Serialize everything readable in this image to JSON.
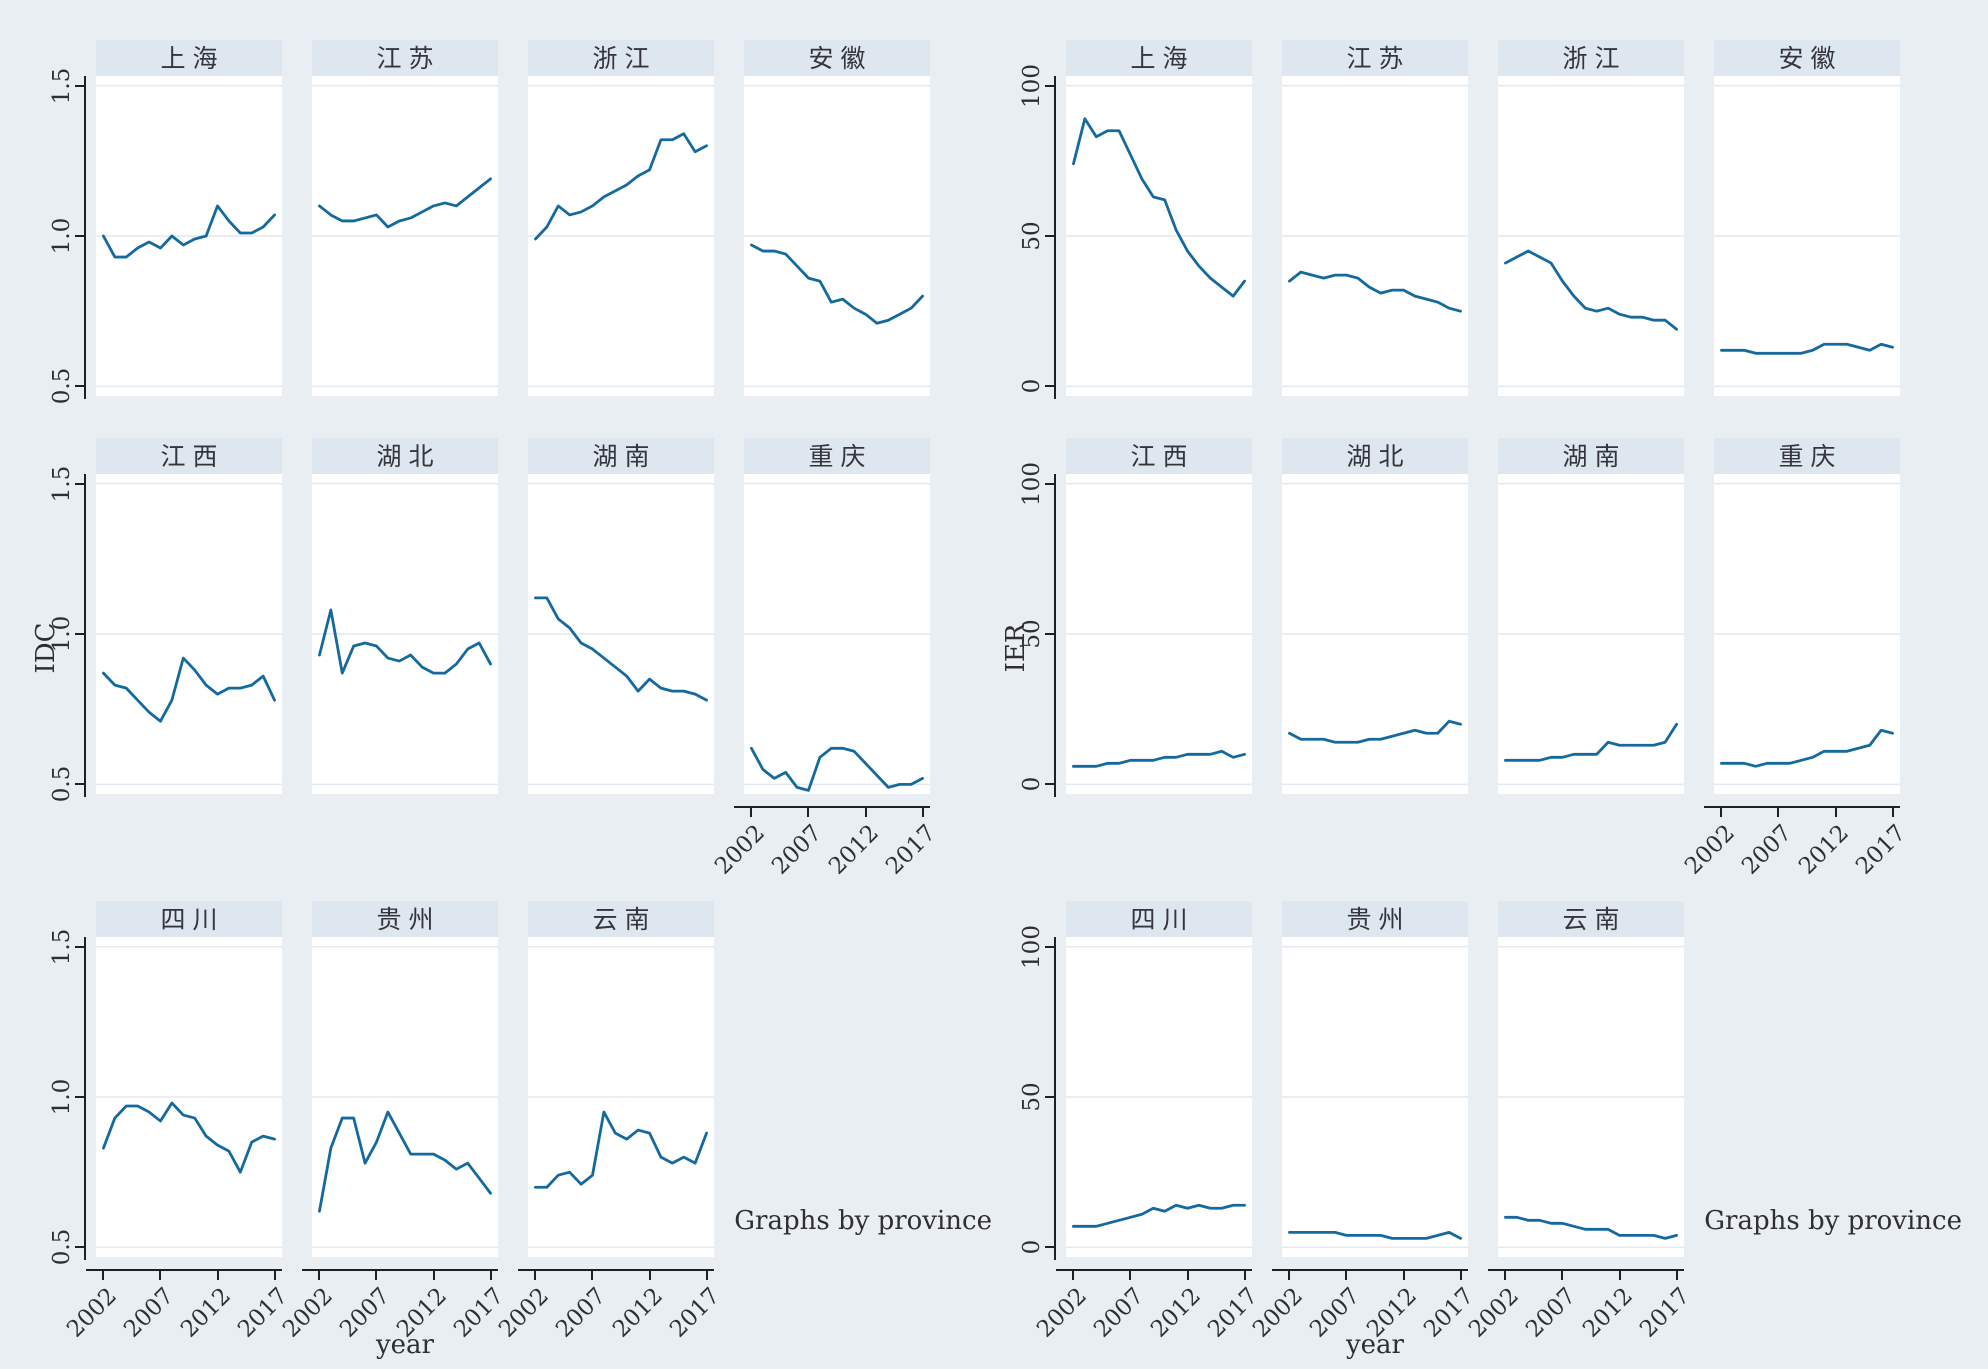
{
  "colors": {
    "background": "#e9eef3",
    "panel_background": "#ffffff",
    "title_band": "#dee7f0",
    "gridline": "#e3e9ee",
    "axis": "#1f1f24",
    "line": "#14699e"
  },
  "chart_data": [
    {
      "type": "line",
      "ylabel": "IDC",
      "xlabel": "year",
      "caption": "Graphs by province",
      "x": [
        2002,
        2003,
        2004,
        2005,
        2006,
        2007,
        2008,
        2009,
        2010,
        2011,
        2012,
        2013,
        2014,
        2015,
        2016,
        2017
      ],
      "xticks": [
        "2002",
        "2007",
        "2012",
        "2017"
      ],
      "yticks": [
        {
          "label": "1.5",
          "value": 1.5
        },
        {
          "label": "1.0",
          "value": 1.0
        },
        {
          "label": "0.5",
          "value": 0.5
        }
      ],
      "ylim": [
        0.468,
        1.532
      ],
      "grid": true,
      "legend": "none",
      "series": [
        {
          "name": "上海",
          "values": [
            1.0,
            0.93,
            0.93,
            0.96,
            0.98,
            0.96,
            1.0,
            0.97,
            0.99,
            1.0,
            1.1,
            1.05,
            1.01,
            1.01,
            1.03,
            1.07
          ]
        },
        {
          "name": "江苏",
          "values": [
            1.1,
            1.07,
            1.05,
            1.05,
            1.06,
            1.07,
            1.03,
            1.05,
            1.06,
            1.08,
            1.1,
            1.11,
            1.1,
            1.13,
            1.16,
            1.19
          ]
        },
        {
          "name": "浙江",
          "values": [
            0.99,
            1.03,
            1.1,
            1.07,
            1.08,
            1.1,
            1.13,
            1.15,
            1.17,
            1.2,
            1.22,
            1.32,
            1.32,
            1.34,
            1.28,
            1.3
          ]
        },
        {
          "name": "安徽",
          "values": [
            0.97,
            0.95,
            0.95,
            0.94,
            0.9,
            0.86,
            0.85,
            0.78,
            0.79,
            0.76,
            0.74,
            0.71,
            0.72,
            0.74,
            0.76,
            0.8
          ]
        },
        {
          "name": "江西",
          "values": [
            0.87,
            0.83,
            0.82,
            0.78,
            0.74,
            0.71,
            0.78,
            0.92,
            0.88,
            0.83,
            0.8,
            0.82,
            0.82,
            0.83,
            0.86,
            0.78
          ]
        },
        {
          "name": "湖北",
          "values": [
            0.93,
            1.08,
            0.87,
            0.96,
            0.97,
            0.96,
            0.92,
            0.91,
            0.93,
            0.89,
            0.87,
            0.87,
            0.9,
            0.95,
            0.97,
            0.9
          ]
        },
        {
          "name": "湖南",
          "values": [
            1.12,
            1.12,
            1.05,
            1.02,
            0.97,
            0.95,
            0.92,
            0.89,
            0.86,
            0.81,
            0.85,
            0.82,
            0.81,
            0.81,
            0.8,
            0.78
          ]
        },
        {
          "name": "重庆",
          "values": [
            0.62,
            0.55,
            0.52,
            0.54,
            0.49,
            0.48,
            0.59,
            0.62,
            0.62,
            0.61,
            0.57,
            0.53,
            0.49,
            0.5,
            0.5,
            0.52
          ]
        },
        {
          "name": "四川",
          "values": [
            0.83,
            0.93,
            0.97,
            0.97,
            0.95,
            0.92,
            0.98,
            0.94,
            0.93,
            0.87,
            0.84,
            0.82,
            0.75,
            0.85,
            0.87,
            0.86
          ]
        },
        {
          "name": "贵州",
          "values": [
            0.62,
            0.83,
            0.93,
            0.93,
            0.78,
            0.85,
            0.95,
            0.88,
            0.81,
            0.81,
            0.81,
            0.79,
            0.76,
            0.78,
            0.73,
            0.68
          ]
        },
        {
          "name": "云南",
          "values": [
            0.7,
            0.7,
            0.74,
            0.75,
            0.71,
            0.74,
            0.95,
            0.88,
            0.86,
            0.89,
            0.88,
            0.8,
            0.78,
            0.8,
            0.78,
            0.88
          ]
        }
      ]
    },
    {
      "type": "line",
      "ylabel": "IER",
      "xlabel": "year",
      "caption": "Graphs by province",
      "x": [
        2002,
        2003,
        2004,
        2005,
        2006,
        2007,
        2008,
        2009,
        2010,
        2011,
        2012,
        2013,
        2014,
        2015,
        2016,
        2017
      ],
      "xticks": [
        "2002",
        "2007",
        "2012",
        "2017"
      ],
      "yticks": [
        {
          "label": "100",
          "value": 100
        },
        {
          "label": "50",
          "value": 50
        },
        {
          "label": "0",
          "value": 0
        }
      ],
      "ylim": [
        -3.2,
        103.2
      ],
      "grid": true,
      "legend": "none",
      "series": [
        {
          "name": "上海",
          "values": [
            74,
            89,
            83,
            85,
            85,
            77,
            69,
            63,
            62,
            52,
            45,
            40,
            36,
            33,
            30,
            35
          ]
        },
        {
          "name": "江苏",
          "values": [
            35,
            38,
            37,
            36,
            37,
            37,
            36,
            33,
            31,
            32,
            32,
            30,
            29,
            28,
            26,
            25
          ]
        },
        {
          "name": "浙江",
          "values": [
            41,
            43,
            45,
            43,
            41,
            35,
            30,
            26,
            25,
            26,
            24,
            23,
            23,
            22,
            22,
            19
          ]
        },
        {
          "name": "安徽",
          "values": [
            12,
            12,
            12,
            11,
            11,
            11,
            11,
            11,
            12,
            14,
            14,
            14,
            13,
            12,
            14,
            13
          ]
        },
        {
          "name": "江西",
          "values": [
            6,
            6,
            6,
            7,
            7,
            8,
            8,
            8,
            9,
            9,
            10,
            10,
            10,
            11,
            9,
            10
          ]
        },
        {
          "name": "湖北",
          "values": [
            17,
            15,
            15,
            15,
            14,
            14,
            14,
            15,
            15,
            16,
            17,
            18,
            17,
            17,
            21,
            20
          ]
        },
        {
          "name": "湖南",
          "values": [
            8,
            8,
            8,
            8,
            9,
            9,
            10,
            10,
            10,
            14,
            13,
            13,
            13,
            13,
            14,
            20
          ]
        },
        {
          "name": "重庆",
          "values": [
            7,
            7,
            7,
            6,
            7,
            7,
            7,
            8,
            9,
            11,
            11,
            11,
            12,
            13,
            18,
            17
          ]
        },
        {
          "name": "四川",
          "values": [
            7,
            7,
            7,
            8,
            9,
            10,
            11,
            13,
            12,
            14,
            13,
            14,
            13,
            13,
            14,
            14
          ]
        },
        {
          "name": "贵州",
          "values": [
            5,
            5,
            5,
            5,
            5,
            4,
            4,
            4,
            4,
            3,
            3,
            3,
            3,
            4,
            5,
            3
          ]
        },
        {
          "name": "云南",
          "values": [
            10,
            10,
            9,
            9,
            8,
            8,
            7,
            6,
            6,
            6,
            4,
            4,
            4,
            4,
            3,
            4
          ]
        }
      ]
    }
  ]
}
